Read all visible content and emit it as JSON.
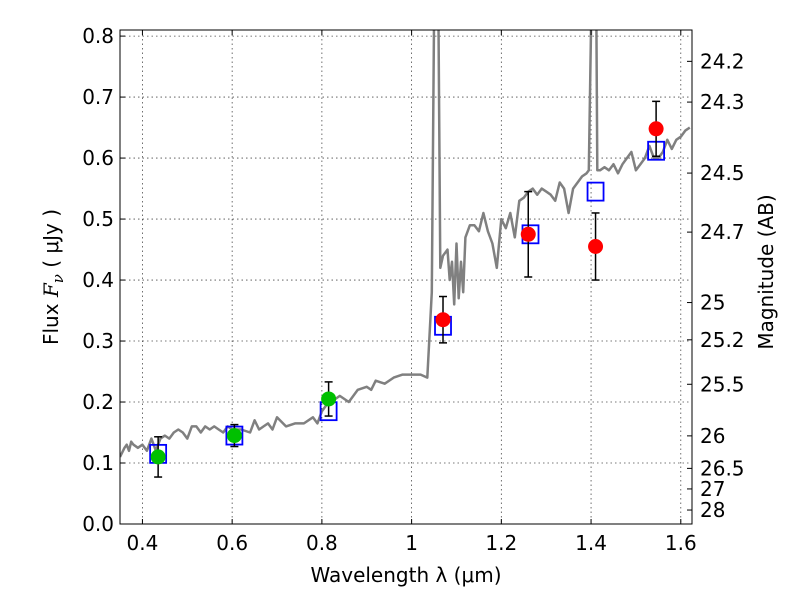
{
  "chart_data": {
    "type": "scatter",
    "xlabel": "Wavelength  λ (μm)",
    "ylabel": "Flux  F_ν  ( μJy )",
    "ylabel_right": "Magnitude (AB)",
    "xlim": [
      0.35,
      1.625
    ],
    "ylim": [
      0.0,
      0.81
    ],
    "x_ticks": [
      0.4,
      0.6,
      0.8,
      1.0,
      1.2,
      1.4,
      1.6
    ],
    "x_tick_labels": [
      "0.4",
      "0.6",
      "0.8",
      "1",
      "1.2",
      "1.4",
      "1.6"
    ],
    "y_ticks": [
      0.0,
      0.1,
      0.2,
      0.3,
      0.4,
      0.5,
      0.6,
      0.7,
      0.8
    ],
    "y_tick_labels": [
      "0.0",
      "0.1",
      "0.2",
      "0.3",
      "0.4",
      "0.5",
      "0.6",
      "0.7",
      "0.8"
    ],
    "right_ticks": [
      {
        "label": "24.2",
        "flux": 0.7586
      },
      {
        "label": "24.3",
        "flux": 0.6918
      },
      {
        "label": "24.5",
        "flux": 0.5754
      },
      {
        "label": "24.7",
        "flux": 0.4786
      },
      {
        "label": "25",
        "flux": 0.3631
      },
      {
        "label": "25.2",
        "flux": 0.302
      },
      {
        "label": "25.5",
        "flux": 0.2291
      },
      {
        "label": "26",
        "flux": 0.1445
      },
      {
        "label": "26.5",
        "flux": 0.0912
      },
      {
        "label": "27",
        "flux": 0.0575
      },
      {
        "label": "28",
        "flux": 0.0229
      }
    ],
    "grid": true,
    "series": [
      {
        "style": "line",
        "color": "#808080",
        "x": [
          0.35,
          0.36,
          0.365,
          0.37,
          0.375,
          0.38,
          0.39,
          0.4,
          0.41,
          0.42,
          0.43,
          0.44,
          0.45,
          0.46,
          0.47,
          0.48,
          0.49,
          0.5,
          0.51,
          0.52,
          0.53,
          0.54,
          0.55,
          0.56,
          0.57,
          0.58,
          0.59,
          0.6,
          0.62,
          0.64,
          0.65,
          0.66,
          0.67,
          0.68,
          0.69,
          0.7,
          0.72,
          0.74,
          0.76,
          0.78,
          0.79,
          0.8,
          0.81,
          0.82,
          0.84,
          0.86,
          0.88,
          0.9,
          0.91,
          0.92,
          0.94,
          0.96,
          0.98,
          1.0,
          1.02,
          1.035,
          1.045,
          1.05,
          1.054,
          1.056,
          1.058,
          1.06,
          1.064,
          1.07,
          1.08,
          1.085,
          1.09,
          1.095,
          1.1,
          1.105,
          1.11,
          1.115,
          1.12,
          1.13,
          1.14,
          1.15,
          1.16,
          1.17,
          1.18,
          1.19,
          1.2,
          1.21,
          1.22,
          1.23,
          1.24,
          1.25,
          1.26,
          1.27,
          1.28,
          1.29,
          1.3,
          1.31,
          1.32,
          1.33,
          1.34,
          1.35,
          1.36,
          1.37,
          1.38,
          1.39,
          1.395,
          1.4,
          1.403,
          1.406,
          1.408,
          1.41,
          1.412,
          1.414,
          1.42,
          1.43,
          1.44,
          1.45,
          1.46,
          1.47,
          1.48,
          1.49,
          1.5,
          1.51,
          1.52,
          1.53,
          1.54,
          1.55,
          1.56,
          1.57,
          1.58,
          1.59,
          1.6,
          1.61,
          1.62
        ],
        "y": [
          0.11,
          0.125,
          0.13,
          0.12,
          0.135,
          0.13,
          0.125,
          0.13,
          0.12,
          0.14,
          0.12,
          0.14,
          0.145,
          0.14,
          0.15,
          0.155,
          0.15,
          0.14,
          0.16,
          0.16,
          0.15,
          0.16,
          0.155,
          0.16,
          0.155,
          0.15,
          0.16,
          0.155,
          0.155,
          0.15,
          0.17,
          0.155,
          0.16,
          0.165,
          0.155,
          0.175,
          0.16,
          0.165,
          0.165,
          0.175,
          0.165,
          0.185,
          0.195,
          0.2,
          0.21,
          0.2,
          0.22,
          0.225,
          0.22,
          0.235,
          0.23,
          0.24,
          0.245,
          0.245,
          0.245,
          0.24,
          0.38,
          0.82,
          0.82,
          0.82,
          0.82,
          0.82,
          0.42,
          0.44,
          0.45,
          0.4,
          0.43,
          0.36,
          0.46,
          0.37,
          0.43,
          0.38,
          0.47,
          0.49,
          0.49,
          0.48,
          0.51,
          0.48,
          0.46,
          0.42,
          0.5,
          0.485,
          0.51,
          0.47,
          0.53,
          0.535,
          0.545,
          0.55,
          0.54,
          0.55,
          0.545,
          0.54,
          0.53,
          0.56,
          0.55,
          0.51,
          0.55,
          0.56,
          0.57,
          0.575,
          0.58,
          0.82,
          0.82,
          0.82,
          0.82,
          0.82,
          0.82,
          0.58,
          0.58,
          0.585,
          0.58,
          0.59,
          0.575,
          0.59,
          0.6,
          0.61,
          0.58,
          0.59,
          0.6,
          0.62,
          0.6,
          0.6,
          0.61,
          0.63,
          0.615,
          0.63,
          0.635,
          0.645,
          0.65
        ]
      },
      {
        "style": "square",
        "color": "#0000ff",
        "x": [
          0.435,
          0.605,
          0.815,
          1.07,
          1.265,
          1.41,
          1.545
        ],
        "y": [
          0.115,
          0.145,
          0.185,
          0.325,
          0.475,
          0.545,
          0.612
        ]
      },
      {
        "style": "circle",
        "color": "#00c000",
        "x": [
          0.435,
          0.605,
          0.815
        ],
        "y": [
          0.11,
          0.145,
          0.205
        ],
        "yerr": [
          0.033,
          0.018,
          0.028
        ]
      },
      {
        "style": "circle",
        "color": "#ff0000",
        "x": [
          1.07,
          1.26,
          1.41,
          1.545
        ],
        "y": [
          0.335,
          0.475,
          0.455,
          0.648
        ],
        "yerr": [
          0.038,
          0.07,
          0.055,
          0.045
        ]
      }
    ]
  }
}
